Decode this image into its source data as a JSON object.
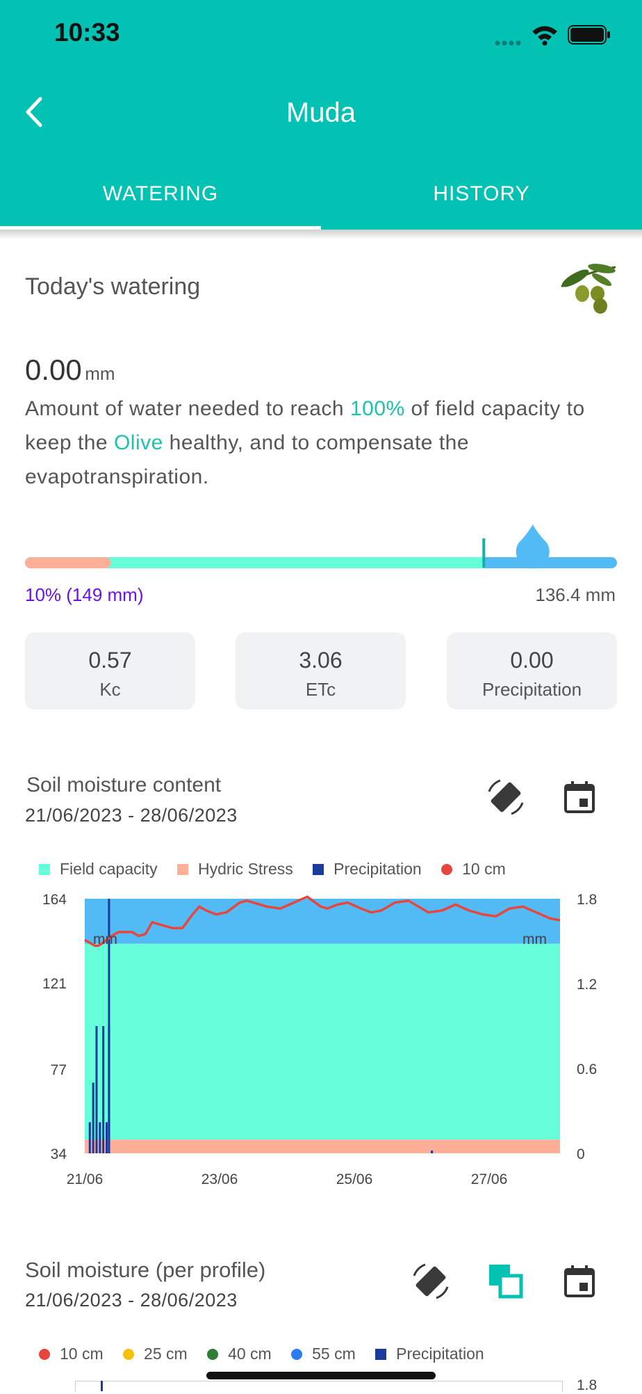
{
  "status_bar": {
    "time": "10:33"
  },
  "header": {
    "title": "Muda",
    "tabs": [
      {
        "label": "WATERING",
        "active": true
      },
      {
        "label": "HISTORY",
        "active": false
      }
    ]
  },
  "watering": {
    "heading": "Today's watering",
    "plant_icon": "olive-branch-icon",
    "amount": "0.00",
    "amount_unit": "mm",
    "description": {
      "part1": "Amount of water needed to reach ",
      "percent": "100%",
      "part2": " of field capacity to keep the ",
      "crop": "Olive",
      "part3": " healthy, and to compensate the evapotranspiration."
    },
    "bar": {
      "stress_fraction": 0.145,
      "field_fraction": 0.63,
      "drop_fraction": 0.86
    },
    "min_label": "10% (149 mm)",
    "max_label": "136.4 mm",
    "stats": [
      {
        "value": "0.57",
        "label": "Kc"
      },
      {
        "value": "3.06",
        "label": "ETc"
      },
      {
        "value": "0.00",
        "label": "Precipitation"
      }
    ]
  },
  "soil_moisture": {
    "title": "Soil moisture content",
    "date_range": "21/06/2023 - 28/06/2023",
    "legend": [
      "Field capacity",
      "Hydric Stress",
      "Precipitation",
      "10 cm"
    ],
    "unit_left": "mm",
    "unit_right": "mm"
  },
  "profile": {
    "title": "Soil moisture (per profile)",
    "date_range": "21/06/2023 - 28/06/2023",
    "legend": [
      "10 cm",
      "25 cm",
      "40 cm",
      "55 cm",
      "Precipitation"
    ],
    "right_top_tick": "1.8"
  },
  "colors": {
    "teal": "#02c2b3",
    "field": "#66ffda",
    "stress": "#fdb097",
    "sky": "#52bbf5",
    "precip": "#1a3a9c",
    "line10": "#e8453c",
    "c25": "#f5c20b",
    "c40": "#2e7d32",
    "c55": "#2d7bf0"
  },
  "chart_data": [
    {
      "type": "line",
      "title": "Soil moisture content",
      "x_ticks": [
        "21/06",
        "23/06",
        "25/06",
        "27/06"
      ],
      "y_left_ticks": [
        164,
        121,
        77,
        34
      ],
      "y_right_ticks": [
        1.8,
        1.2,
        0.6,
        0
      ],
      "ylim_left": [
        34,
        164
      ],
      "ylim_right": [
        0,
        1.8
      ],
      "bands": [
        {
          "name": "Hydric Stress",
          "from": 34,
          "to": 41
        },
        {
          "name": "Field capacity",
          "from": 41,
          "to": 141
        }
      ],
      "series": [
        {
          "name": "10 cm",
          "axis": "left",
          "x": [
            0,
            0.2,
            0.3,
            0.4,
            0.5,
            0.8,
            1.0,
            1.4,
            1.6,
            1.8,
            2.0,
            2.4,
            2.6,
            2.9,
            3.2,
            3.4,
            3.6,
            3.9,
            4.2,
            4.6,
            4.8,
            5.0,
            5.4,
            5.8,
            6.2,
            6.6,
            7.0,
            7.2,
            7.5,
            7.8,
            8.2,
            8.5,
            8.8,
            9.2,
            9.6,
            10.0,
            10.2,
            10.6,
            11.0,
            11.4,
            11.8,
            12.2,
            12.6,
            13.0,
            13.4,
            13.8,
            14.1
          ],
          "y": [
            143,
            141,
            140,
            140,
            141,
            145,
            147,
            147,
            145,
            146,
            152,
            150,
            149,
            149,
            156,
            160,
            158,
            156,
            157,
            162,
            163,
            162,
            160,
            159,
            162,
            165,
            160,
            159,
            161,
            162,
            159,
            157,
            158,
            162,
            163,
            159,
            157,
            158,
            161,
            158,
            156,
            155,
            159,
            160,
            157,
            154,
            153
          ]
        },
        {
          "name": "Precipitation",
          "axis": "right",
          "type": "bar",
          "x": [
            0.15,
            0.25,
            0.35,
            0.45,
            0.55,
            0.65,
            0.72,
            10.3
          ],
          "y": [
            0.22,
            0.5,
            0.9,
            0.22,
            0.9,
            0.22,
            0.9,
            0.02
          ]
        }
      ],
      "marker": {
        "x": 0.72
      }
    }
  ]
}
